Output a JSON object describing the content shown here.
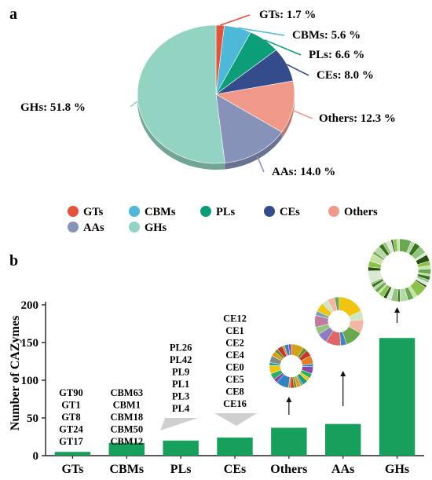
{
  "panels": {
    "a": "a",
    "b": "b"
  },
  "chart_data": [
    {
      "type": "pie",
      "categories": [
        "GTs",
        "CBMs",
        "PLs",
        "CEs",
        "Others",
        "AAs",
        "GHs"
      ],
      "values": [
        1.7,
        5.6,
        6.6,
        8.0,
        12.3,
        14.0,
        51.8
      ],
      "slice_labels": [
        "GTs: 1.7 %",
        "CBMs: 5.6 %",
        "PLs: 6.6 %",
        "CEs: 8.0 %",
        "Others: 12.3 %",
        "AAs: 14.0 %",
        "GHs: 51.8 %"
      ],
      "colors": [
        "#e2533a",
        "#4db8d8",
        "#0b9e78",
        "#344c8c",
        "#f0998a",
        "#8792b8",
        "#93d3c1"
      ],
      "legend": [
        "GTs",
        "CBMs",
        "PLs",
        "CEs",
        "Others",
        "AAs",
        "GHs"
      ],
      "legend_placement": "bottom"
    },
    {
      "type": "bar",
      "categories": [
        "GTs",
        "CBMs",
        "PLs",
        "CEs",
        "Others",
        "AAs",
        "GHs"
      ],
      "values": [
        5,
        17,
        20,
        24,
        37,
        42,
        156
      ],
      "ylabel": "Number of CAZymes",
      "ylim": [
        0,
        200
      ],
      "yticks": [
        "0",
        "50",
        "100",
        "150",
        "200"
      ],
      "bar_color": "#16a05c",
      "grid": false,
      "family_lists": {
        "GTs": [
          "GT90",
          "GT1",
          "GT8",
          "GT24",
          "GT17"
        ],
        "CBMs": [
          "CBM63",
          "CBM1",
          "CBM18",
          "CBM50",
          "CBM12"
        ],
        "PLs": [
          "PL26",
          "PL42",
          "PL9",
          "PL1",
          "PL3",
          "PL4"
        ],
        "CEs": [
          "CE12",
          "CE1",
          "CE2",
          "CE4",
          "CE0",
          "CE5",
          "CE8",
          "CE16"
        ]
      }
    }
  ]
}
